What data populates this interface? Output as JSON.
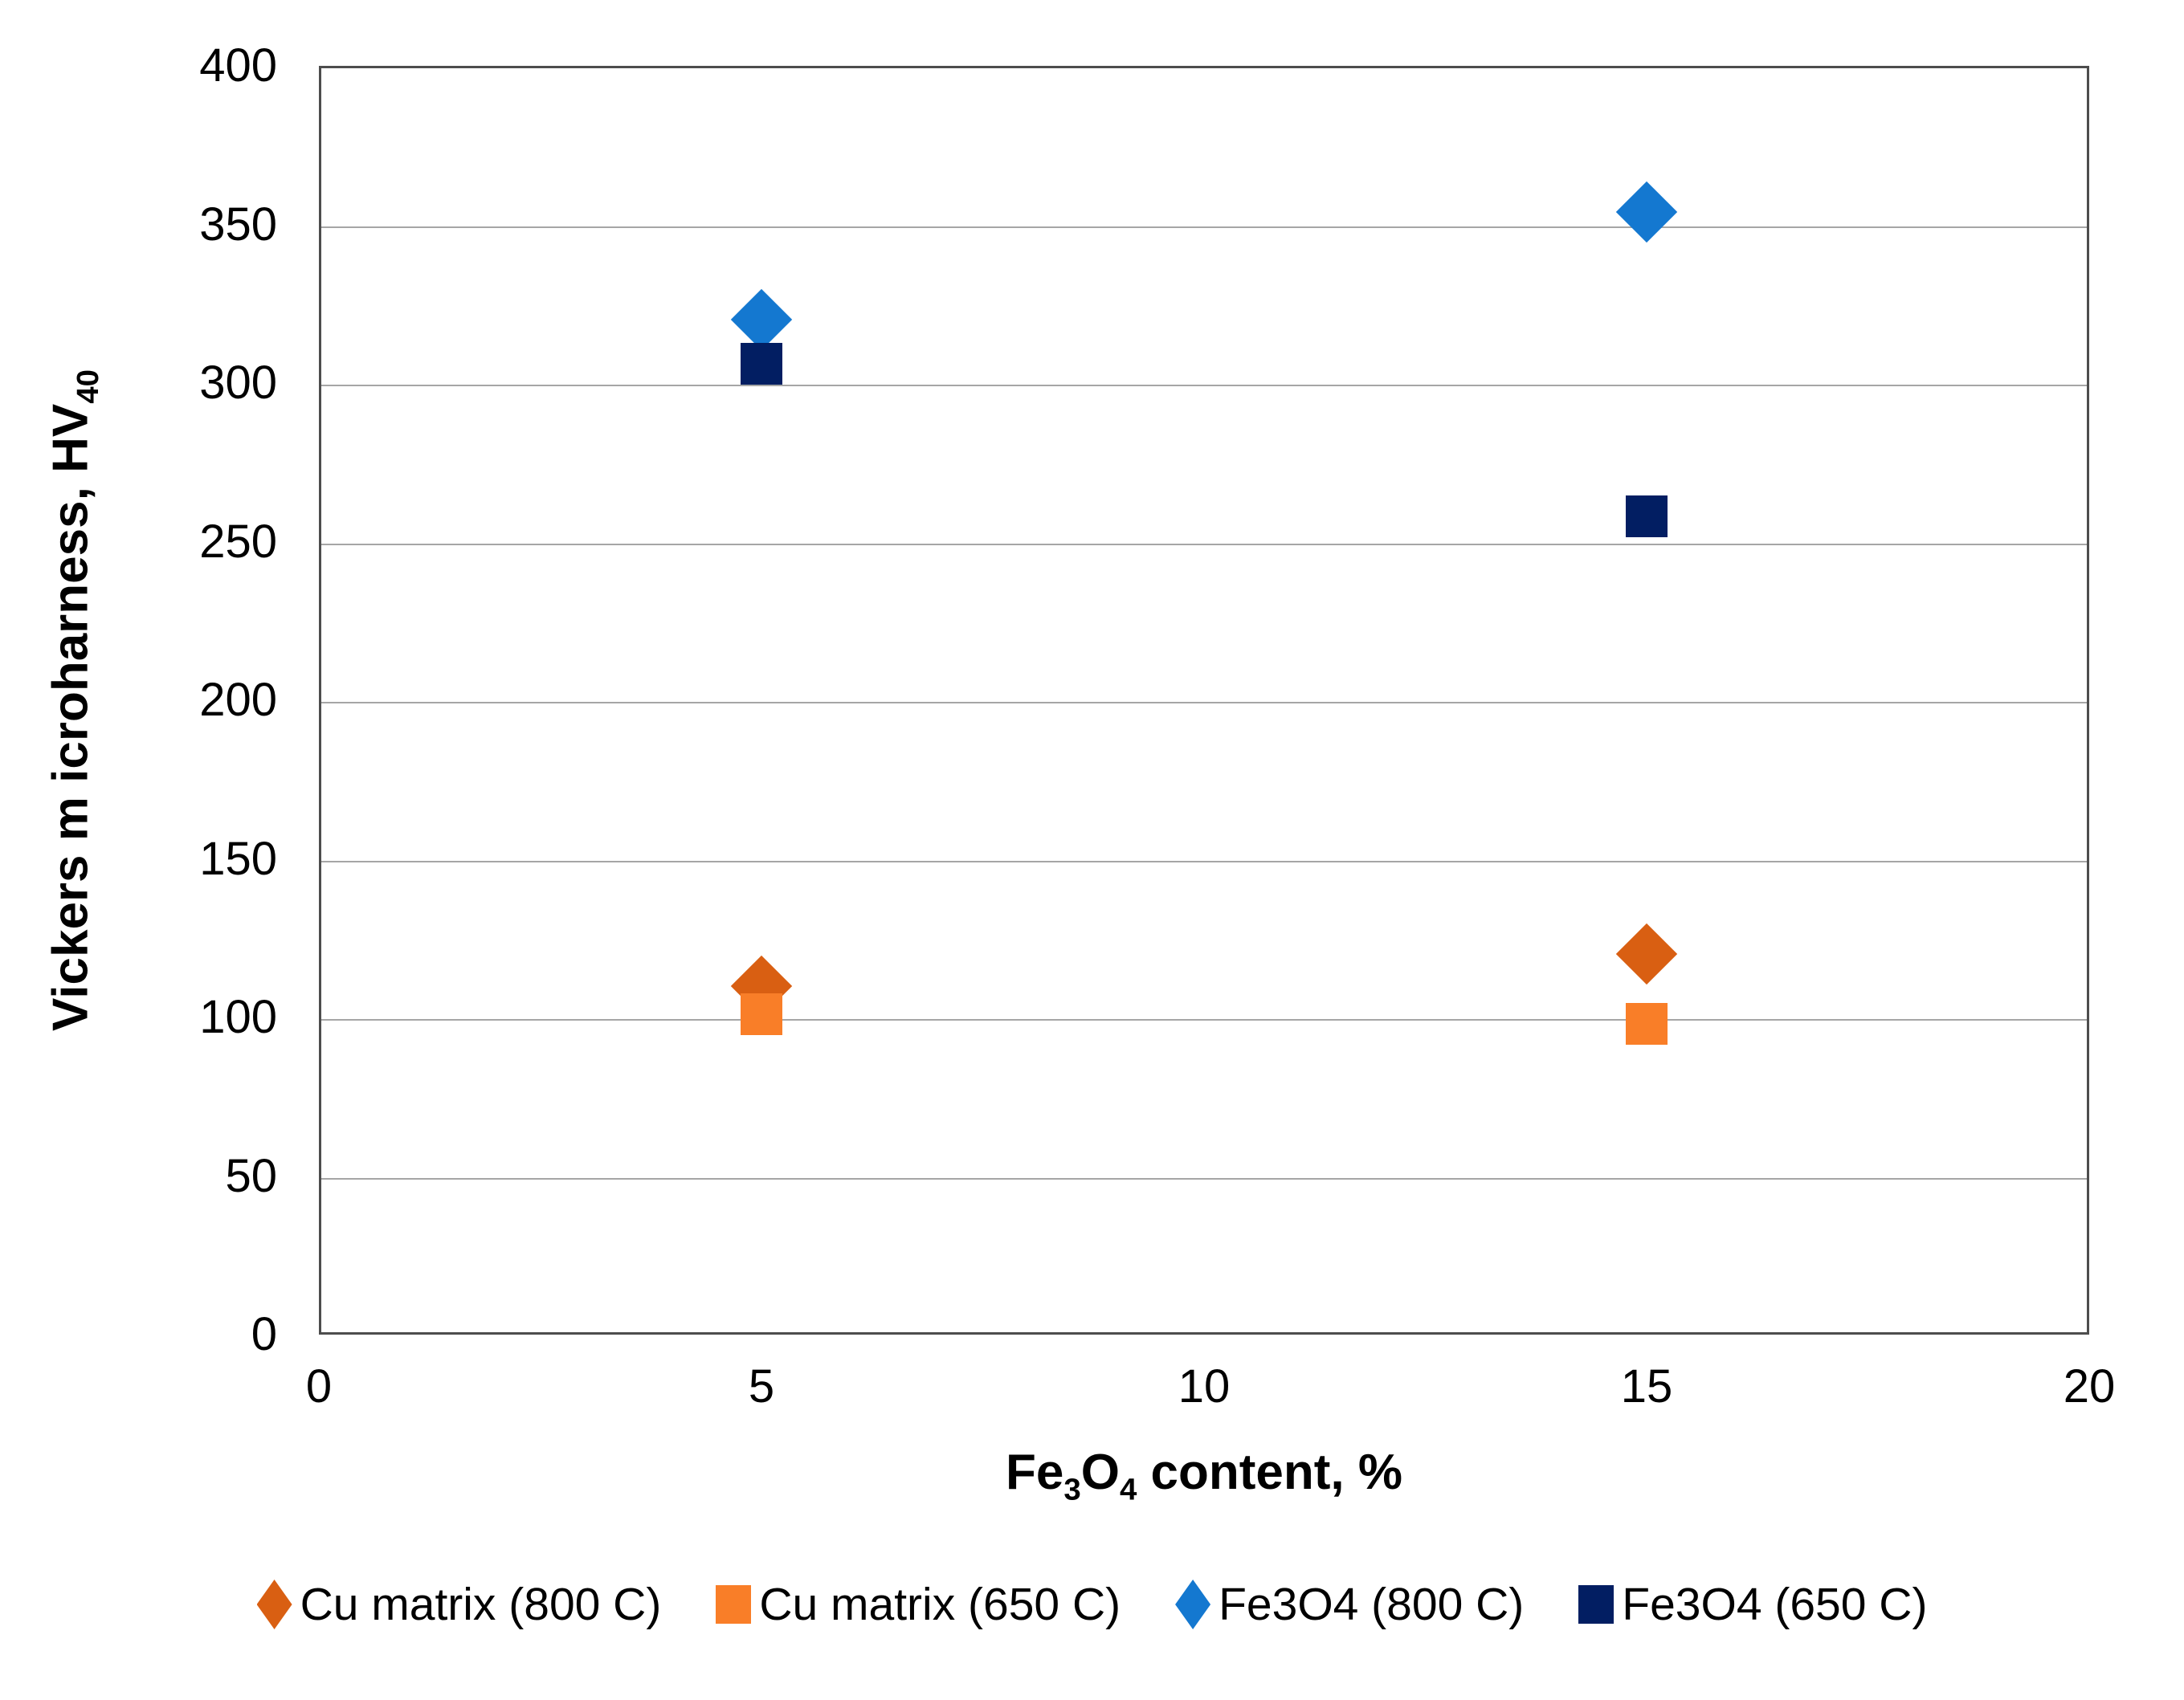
{
  "chart_data": {
    "type": "scatter",
    "title": "",
    "xlabel_rich": [
      {
        "t": "text",
        "v": "Fe"
      },
      {
        "t": "sub",
        "v": "3"
      },
      {
        "t": "text",
        "v": "O"
      },
      {
        "t": "sub",
        "v": "4"
      },
      {
        "t": "text",
        "v": " content, %"
      }
    ],
    "ylabel_rich": [
      {
        "t": "text",
        "v": "Vickers m icroharness, HV"
      },
      {
        "t": "sub",
        "v": "40"
      }
    ],
    "xlim": [
      0,
      20
    ],
    "ylim": [
      0,
      400
    ],
    "xticks": [
      0,
      5,
      10,
      15,
      20
    ],
    "yticks": [
      0,
      50,
      100,
      150,
      200,
      250,
      300,
      350,
      400
    ],
    "grid": "horizontal-only",
    "legend_position": "bottom",
    "series": [
      {
        "name": "Cu matrix (800 C)",
        "marker": "diamond",
        "color": "#D95F12",
        "points": [
          {
            "x": 5,
            "y": 110
          },
          {
            "x": 15,
            "y": 120
          }
        ]
      },
      {
        "name": "Cu matrix (650 C)",
        "marker": "square",
        "color": "#F97E28",
        "points": [
          {
            "x": 5,
            "y": 101
          },
          {
            "x": 15,
            "y": 98
          }
        ]
      },
      {
        "name": "Fe3O4 (800 C)",
        "marker": "diamond",
        "color": "#1478D0",
        "points": [
          {
            "x": 5,
            "y": 320
          },
          {
            "x": 15,
            "y": 354
          }
        ]
      },
      {
        "name": "Fe3O4 (650 C)",
        "marker": "square",
        "color": "#021E62",
        "points": [
          {
            "x": 5,
            "y": 306
          },
          {
            "x": 15,
            "y": 258
          }
        ]
      }
    ],
    "colors": {
      "background": "#FFFFFF",
      "plot_border": "#4D4D4D",
      "gridline": "#A6A6A6",
      "text": "#000000"
    }
  }
}
